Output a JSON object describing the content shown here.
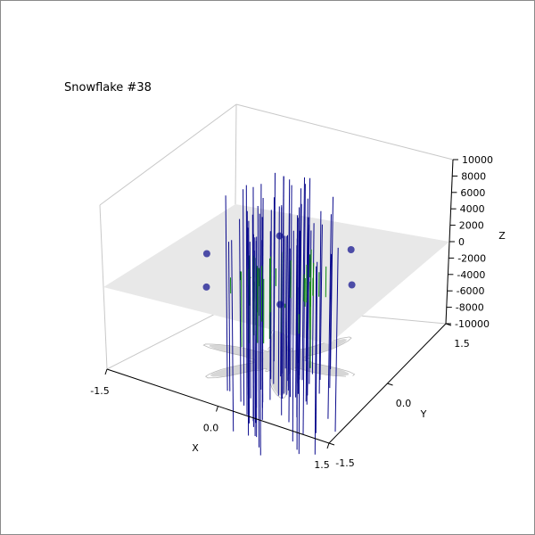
{
  "chart_data": {
    "type": "3d-surface",
    "title": "Snowflake #38",
    "xlabel": "X",
    "ylabel": "Y",
    "zlabel": "Z",
    "xlim": [
      -1.5,
      1.5
    ],
    "ylim": [
      -1.5,
      1.5
    ],
    "zlim": [
      -10000,
      10000
    ],
    "x_ticks": [
      "-1.5",
      "0.0",
      "1.5"
    ],
    "y_ticks": [
      "-1.5",
      "0.0",
      "1.5"
    ],
    "z_ticks": [
      "-10000",
      "-8000",
      "-6000",
      "-4000",
      "-2000",
      "0",
      "2000",
      "4000",
      "6000",
      "8000",
      "10000"
    ],
    "plane_z": 0,
    "arms": 6,
    "grid": false,
    "colors": {
      "upper_surface": "#0a0a8c",
      "lower_surface": "#0e8a0e",
      "plane": "#e8e8e8",
      "shadow": "#b4b4b4",
      "pane_edges": "#c8c8c8"
    }
  }
}
